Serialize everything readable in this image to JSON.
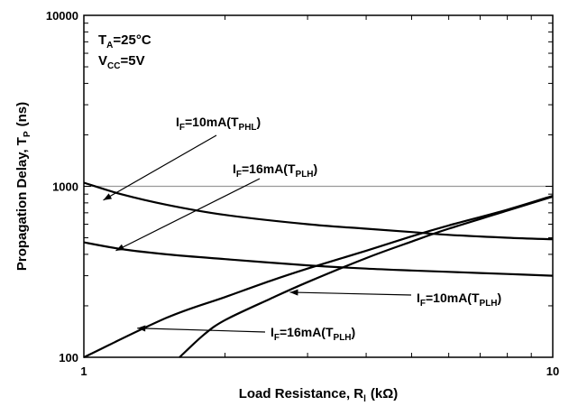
{
  "chart_data": {
    "type": "line",
    "title": "",
    "xlabel": "Load Resistance, R",
    "xlabel_sub": "l",
    "xlabel_unit": "(kΩ)",
    "ylabel": "Propagation Delay, T",
    "ylabel_sub": "P",
    "ylabel_unit": "(ns)",
    "x_scale": "log",
    "y_scale": "log",
    "xlim": [
      1,
      10
    ],
    "ylim": [
      100,
      10000
    ],
    "x_ticks": [
      {
        "value": 1,
        "label": "1"
      },
      {
        "value": 10,
        "label": "10"
      }
    ],
    "y_ticks": [
      {
        "value": 100,
        "label": "100"
      },
      {
        "value": 1000,
        "label": "1000"
      },
      {
        "value": 10000,
        "label": "10000"
      }
    ],
    "grid": "horizontal line at 1000",
    "conditions": [
      {
        "main": "T",
        "sub": "A",
        "rest": "=25°C"
      },
      {
        "main": "V",
        "sub": "CC",
        "rest": "=5V"
      }
    ],
    "series": [
      {
        "name": "I_F=10mA(T_PHL)",
        "x": [
          1.0,
          1.2,
          1.5,
          2.0,
          3.0,
          4.0,
          5.0,
          6.0,
          8.0,
          10.0
        ],
        "y": [
          1050,
          900,
          780,
          680,
          600,
          565,
          540,
          520,
          500,
          490
        ]
      },
      {
        "name": "I_F=16mA(T_PLH)",
        "x": [
          1.0,
          1.2,
          1.5,
          2.0,
          3.0,
          4.0,
          5.0,
          6.0,
          8.0,
          10.0
        ],
        "y": [
          470,
          430,
          400,
          375,
          345,
          330,
          322,
          316,
          307,
          300
        ]
      },
      {
        "name": "I_F=10mA(T_PLH)",
        "x": [
          1.0,
          1.5,
          2.0,
          2.5,
          3.0,
          4.0,
          5.0,
          6.0,
          8.0,
          10.0
        ],
        "y": [
          100,
          170,
          225,
          280,
          330,
          420,
          510,
          590,
          730,
          880
        ]
      },
      {
        "name": "I_F=16mA(T_PLH)",
        "x": [
          1.6,
          1.8,
          2.0,
          2.5,
          3.0,
          4.0,
          5.0,
          6.0,
          8.0,
          10.0
        ],
        "y": [
          100,
          135,
          165,
          220,
          275,
          380,
          475,
          565,
          720,
          870
        ]
      }
    ],
    "annotations": [
      {
        "pre": "I",
        "sub1": "F",
        "mid": "=10mA(T",
        "sub2": "PHL",
        "post": ")",
        "series": 0,
        "arrow_to": [
          1.1,
          830
        ]
      },
      {
        "pre": "I",
        "sub1": "F",
        "mid": "=16mA(T",
        "sub2": "PLH",
        "post": ")",
        "series": 1,
        "arrow_to": [
          1.17,
          420
        ]
      },
      {
        "pre": "I",
        "sub1": "F",
        "mid": "=10mA(T",
        "sub2": "PLH",
        "post": ")",
        "series": 2,
        "arrow_to": [
          2.75,
          240
        ]
      },
      {
        "pre": "I",
        "sub1": "F",
        "mid": "=16mA(T",
        "sub2": "PLH",
        "post": ")",
        "series": 3,
        "arrow_to": [
          1.3,
          148
        ]
      }
    ]
  }
}
